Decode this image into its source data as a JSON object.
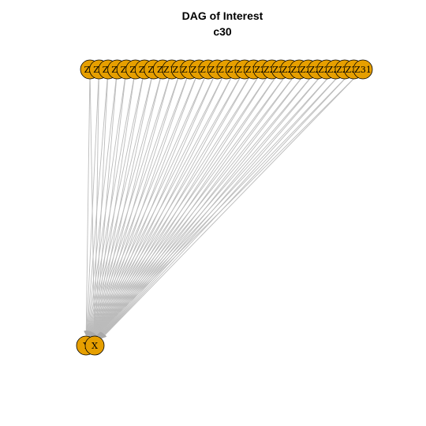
{
  "title": {
    "line1": "DAG of Interest",
    "line2": "c30"
  },
  "colors": {
    "node_fill": "#E69F00",
    "node_stroke": "#000000",
    "edge": "#BBBBBB",
    "background": "#FFFFFF"
  },
  "graph": {
    "source_nodes": [
      "Z1",
      "Z2",
      "Z3",
      "Z4",
      "Z5",
      "Z6",
      "Z7",
      "Z8",
      "Z9",
      "Z10",
      "Z11",
      "Z12",
      "Z13",
      "Z14",
      "Z15",
      "Z16",
      "Z17",
      "Z18",
      "Z19",
      "Z20",
      "Z21",
      "Z22",
      "Z23",
      "Z24",
      "Z25",
      "Z26",
      "Z27",
      "Z28",
      "Z29",
      "Z30",
      "Z31"
    ],
    "sink_nodes": [
      "Y",
      "X"
    ],
    "edges_from_each_source_to": [
      "Y",
      "X"
    ]
  }
}
